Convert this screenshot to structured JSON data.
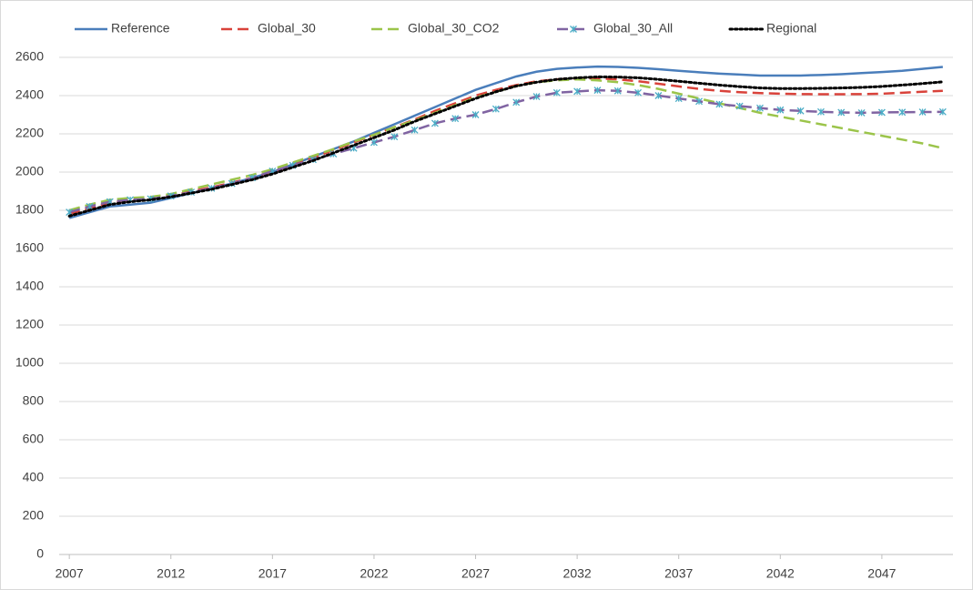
{
  "chart_data": {
    "type": "line",
    "x": [
      2007,
      2008,
      2009,
      2010,
      2011,
      2012,
      2013,
      2014,
      2015,
      2016,
      2017,
      2018,
      2019,
      2020,
      2021,
      2022,
      2023,
      2024,
      2025,
      2026,
      2027,
      2028,
      2029,
      2030,
      2031,
      2032,
      2033,
      2034,
      2035,
      2036,
      2037,
      2038,
      2039,
      2040,
      2041,
      2042,
      2043,
      2044,
      2045,
      2046,
      2047,
      2048,
      2049,
      2050
    ],
    "xlim": [
      2006.5,
      2050.5
    ],
    "xticks": [
      2007,
      2012,
      2017,
      2022,
      2027,
      2032,
      2037,
      2042,
      2047
    ],
    "ylim": [
      0,
      2600
    ],
    "yticks": [
      0,
      200,
      400,
      600,
      800,
      1000,
      1200,
      1400,
      1600,
      1800,
      2000,
      2200,
      2400,
      2600
    ],
    "grid": true,
    "legend": "top",
    "series": [
      {
        "name": "Reference",
        "color": "#4a7ebb",
        "dash": "solid",
        "values": [
          1760,
          1790,
          1820,
          1830,
          1840,
          1865,
          1890,
          1915,
          1940,
          1970,
          2000,
          2040,
          2080,
          2120,
          2160,
          2205,
          2250,
          2295,
          2340,
          2385,
          2430,
          2465,
          2500,
          2525,
          2540,
          2547,
          2552,
          2550,
          2545,
          2538,
          2530,
          2522,
          2515,
          2510,
          2505,
          2505,
          2505,
          2508,
          2512,
          2518,
          2523,
          2530,
          2540,
          2550
        ]
      },
      {
        "name": "Global_30",
        "color": "#d9423a",
        "dash": "dashed",
        "values": [
          1780,
          1810,
          1840,
          1850,
          1860,
          1875,
          1900,
          1920,
          1945,
          1970,
          2000,
          2035,
          2075,
          2115,
          2155,
          2195,
          2235,
          2275,
          2320,
          2360,
          2400,
          2430,
          2455,
          2475,
          2485,
          2490,
          2490,
          2485,
          2475,
          2462,
          2448,
          2435,
          2425,
          2418,
          2413,
          2410,
          2408,
          2407,
          2407,
          2408,
          2410,
          2415,
          2420,
          2425
        ]
      },
      {
        "name": "Global_30_CO2",
        "color": "#9bc44a",
        "dash": "dashed",
        "values": [
          1800,
          1830,
          1855,
          1865,
          1870,
          1885,
          1910,
          1935,
          1960,
          1985,
          2015,
          2050,
          2085,
          2120,
          2160,
          2195,
          2235,
          2270,
          2310,
          2350,
          2390,
          2420,
          2450,
          2470,
          2480,
          2485,
          2480,
          2470,
          2455,
          2435,
          2410,
          2385,
          2360,
          2335,
          2310,
          2290,
          2270,
          2250,
          2230,
          2210,
          2190,
          2170,
          2150,
          2125
        ]
      },
      {
        "name": "Global_30_All",
        "color": "#8064a2",
        "dash": "dashed",
        "marker": "x",
        "marker_color": "#4bacc6",
        "values": [
          1790,
          1820,
          1845,
          1855,
          1860,
          1875,
          1895,
          1915,
          1940,
          1970,
          2005,
          2035,
          2065,
          2095,
          2125,
          2155,
          2185,
          2220,
          2255,
          2280,
          2300,
          2330,
          2365,
          2395,
          2415,
          2422,
          2428,
          2425,
          2415,
          2400,
          2385,
          2370,
          2355,
          2345,
          2335,
          2325,
          2320,
          2315,
          2312,
          2310,
          2312,
          2313,
          2314,
          2315
        ]
      },
      {
        "name": "Regional",
        "color": "#000000",
        "dash": "dotted",
        "values": [
          1770,
          1800,
          1830,
          1845,
          1855,
          1870,
          1890,
          1910,
          1935,
          1960,
          1990,
          2025,
          2060,
          2100,
          2140,
          2180,
          2220,
          2265,
          2305,
          2345,
          2385,
          2420,
          2450,
          2470,
          2485,
          2493,
          2498,
          2497,
          2493,
          2485,
          2475,
          2465,
          2455,
          2447,
          2440,
          2437,
          2437,
          2438,
          2440,
          2443,
          2448,
          2455,
          2463,
          2472
        ]
      }
    ]
  }
}
